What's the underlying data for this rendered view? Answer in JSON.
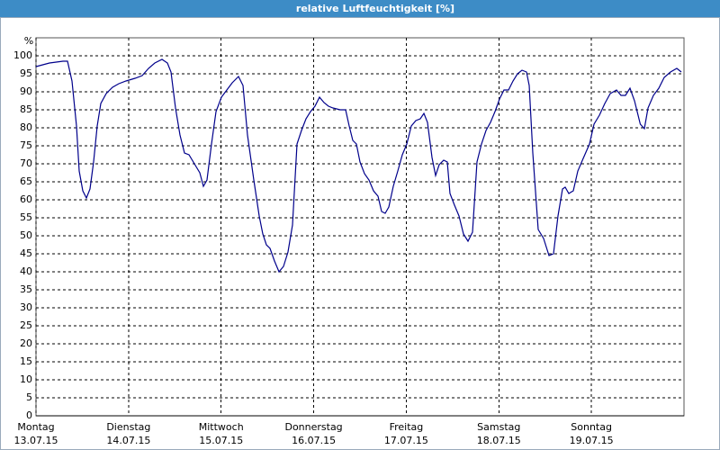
{
  "chart_data": {
    "type": "line",
    "title": "relative Luftfeuchtigkeit [%]",
    "y_unit": "%",
    "xlim": [
      0,
      168
    ],
    "ylim": [
      0,
      105
    ],
    "xticks": [
      {
        "value": 0,
        "label": "Montag"
      },
      {
        "value": 24,
        "label": "Dienstag"
      },
      {
        "value": 48,
        "label": "Mittwoch"
      },
      {
        "value": 72,
        "label": "Donnerstag"
      },
      {
        "value": 96,
        "label": "Freitag"
      },
      {
        "value": 120,
        "label": "Samstag"
      },
      {
        "value": 144,
        "label": "Sonntag"
      }
    ],
    "xtick_dates": [
      "13.07.15",
      "14.07.15",
      "15.07.15",
      "16.07.15",
      "17.07.15",
      "18.07.15",
      "19.07.15"
    ],
    "yticks": [
      0,
      5,
      10,
      15,
      20,
      25,
      30,
      35,
      40,
      45,
      50,
      55,
      60,
      65,
      70,
      75,
      80,
      85,
      90,
      95,
      100
    ],
    "grid": true,
    "series": [
      {
        "name": "relative Luftfeuchtigkeit",
        "color": "#00008b",
        "x": [
          0,
          3.5,
          7,
          8.17,
          9.33,
          10.5,
          11.2,
          12.13,
          13.07,
          14,
          14.93,
          15.87,
          16.8,
          18.2,
          19.83,
          21.47,
          23.33,
          25.67,
          27.53,
          29.17,
          30.8,
          32.67,
          34.07,
          35,
          36.17,
          37.33,
          38.5,
          39.67,
          41.07,
          42.47,
          43.4,
          44.33,
          45.5,
          46.67,
          48.07,
          49.47,
          50.87,
          52.5,
          53.67,
          54.83,
          56.47,
          57.87,
          58.8,
          59.73,
          60.67,
          61.83,
          63,
          64.17,
          65.33,
          66.5,
          67.67,
          68.83,
          70,
          71.17,
          72.33,
          73.5,
          74.67,
          75.83,
          77,
          78.87,
          80.27,
          81.2,
          82.13,
          83.07,
          84,
          85.17,
          86.33,
          87.5,
          88.67,
          89.6,
          90.53,
          91.47,
          92.63,
          93.8,
          94.97,
          96.13,
          97.3,
          98.47,
          99.63,
          100.57,
          101.5,
          102.67,
          103.6,
          104.53,
          105.7,
          106.63,
          107.33,
          108.5,
          109.67,
          110.83,
          112,
          113.17,
          114.33,
          115.5,
          116.67,
          117.83,
          119,
          120.17,
          121.33,
          122.5,
          123.67,
          124.83,
          126,
          127.17,
          127.87,
          128.8,
          130.2,
          131.6,
          133,
          134.17,
          135.33,
          136.5,
          137.2,
          138.13,
          139.3,
          140.47,
          141.87,
          143.5,
          144.67,
          146.07,
          147.47,
          148.87,
          150.5,
          151.67,
          152.83,
          154,
          155.17,
          156.67,
          157.73,
          158.67,
          160.07,
          161.47,
          162.87,
          164.5,
          166.13,
          167.3
        ],
        "values": [
          97,
          98,
          98.5,
          98.5,
          93,
          80.5,
          68,
          62.5,
          60.5,
          63,
          70.5,
          80.5,
          86.75,
          89.5,
          91.25,
          92.25,
          93,
          93.75,
          94.5,
          96.5,
          98,
          99,
          98,
          95.5,
          85.5,
          78,
          73,
          72.5,
          70,
          67.5,
          63.75,
          65.5,
          75.5,
          84.5,
          88.5,
          90.5,
          92.5,
          94.25,
          91.75,
          78,
          65.5,
          55.5,
          50.5,
          47.5,
          46.5,
          43,
          40,
          41.5,
          45.5,
          53,
          75.5,
          79.25,
          82.5,
          84.5,
          86,
          88.5,
          87,
          86,
          85.5,
          85,
          85,
          80.5,
          76.5,
          75.5,
          70.5,
          67.25,
          65.5,
          62.5,
          61,
          56.75,
          56.25,
          58,
          63.75,
          68,
          72.5,
          75.5,
          80.5,
          82,
          82.5,
          84,
          81.5,
          71.75,
          66.75,
          69.75,
          71,
          70.5,
          61.75,
          58.5,
          55.5,
          50.5,
          48.5,
          51,
          70.5,
          75.5,
          79.25,
          81.5,
          84.5,
          88,
          90.5,
          90.5,
          93,
          95,
          96,
          95.5,
          91.75,
          73,
          51.75,
          49.25,
          44.5,
          45,
          55.5,
          63,
          63.5,
          61.75,
          62.5,
          68,
          71.5,
          75.5,
          81,
          83.5,
          86.75,
          89.5,
          90.5,
          89,
          89,
          91,
          87.5,
          81,
          79.75,
          85.5,
          89,
          91,
          94,
          95.5,
          96.5,
          95.5
        ]
      }
    ]
  }
}
